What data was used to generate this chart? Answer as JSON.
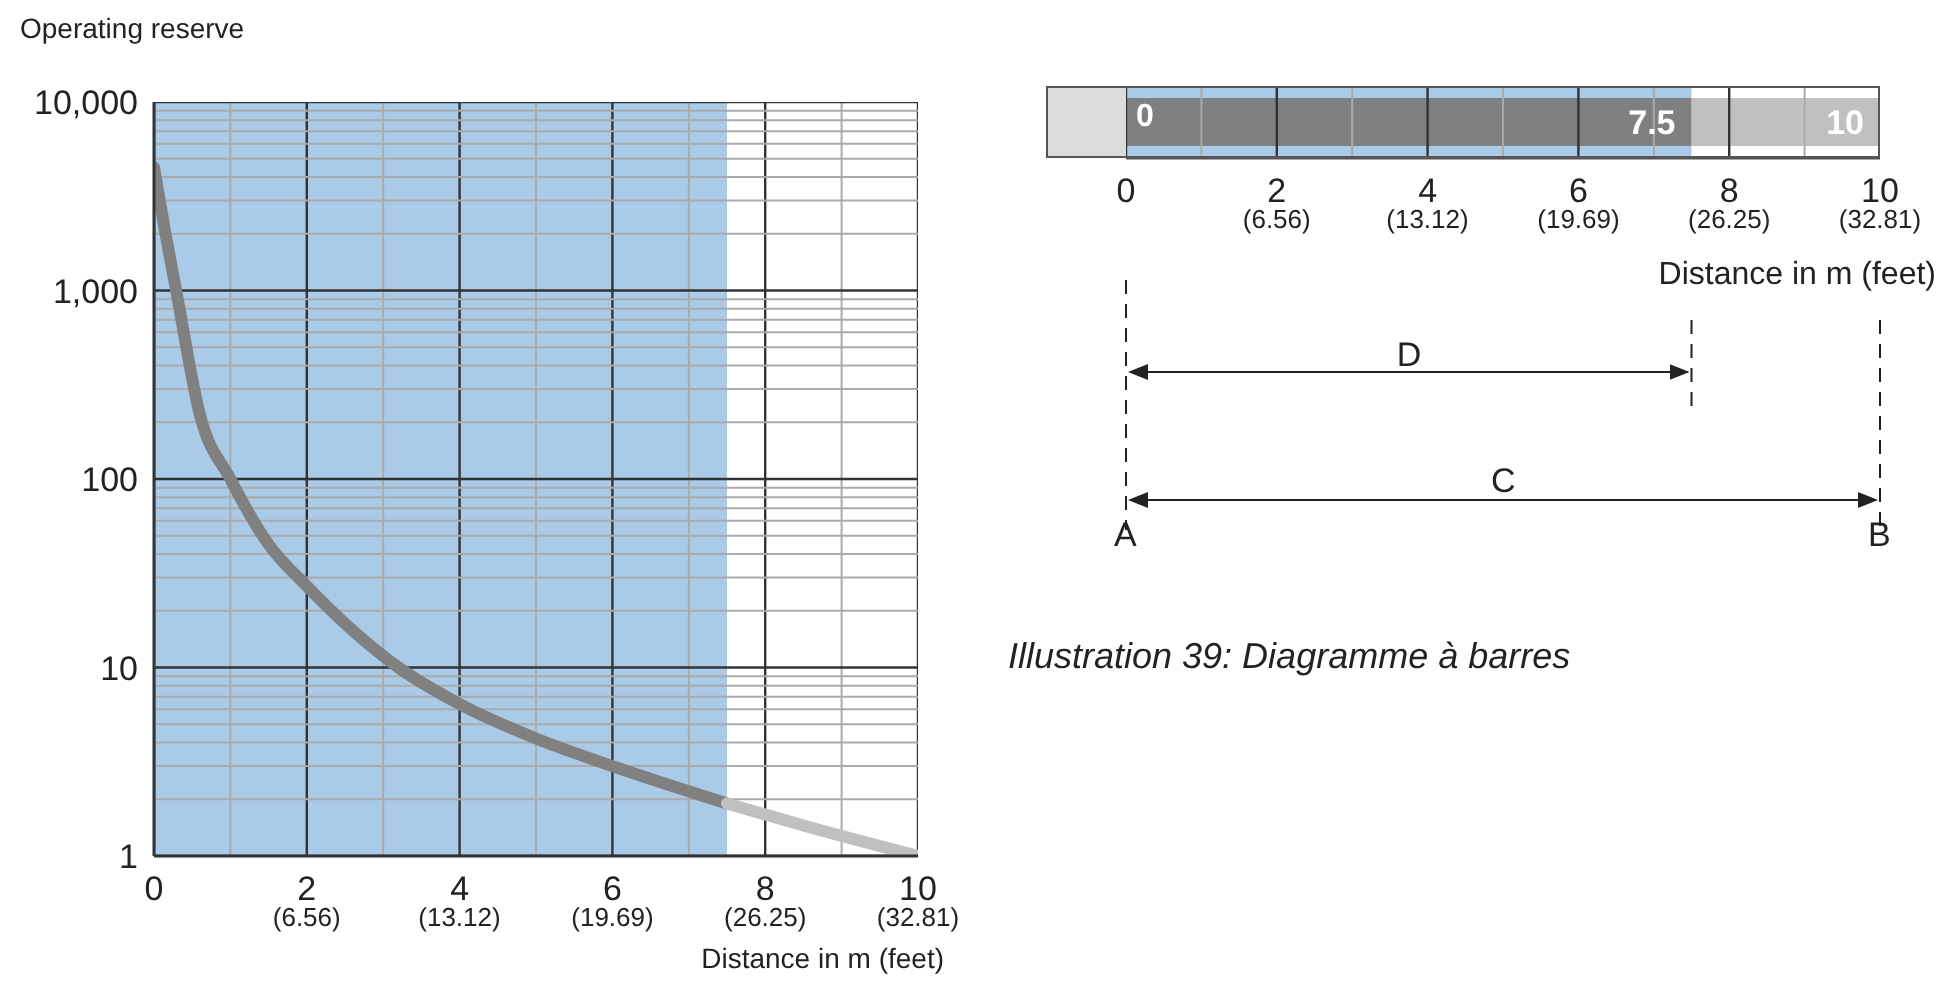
{
  "chart_data": [
    {
      "type": "line",
      "ylabel": "Operating reserve",
      "xlabel": "Distance in m (feet)",
      "log": "y",
      "grid": true,
      "marker": "none",
      "line_style": "solid",
      "xlim": [
        0,
        10
      ],
      "xticks": [
        0,
        {
          "value": 1,
          "label": null
        },
        2,
        {
          "value": 3,
          "label": null
        },
        4,
        {
          "value": 5,
          "label": null
        },
        6,
        {
          "value": 7,
          "label": null
        },
        8,
        {
          "value": 9,
          "label": null
        },
        10
      ],
      "x2lim": [
        0,
        32.81
      ],
      "x2ticks": [
        {
          "value": 6.56,
          "label": "(6.56)"
        },
        {
          "value": 13.12,
          "label": "(13.12)"
        },
        {
          "value": 19.69,
          "label": "(19.69)"
        },
        {
          "value": 26.25,
          "label": "(26.25)"
        },
        {
          "value": 32.81,
          "label": "(32.81)"
        }
      ],
      "ylim": [
        1,
        10000
      ],
      "yticks": [
        1,
        {
          "value": 2,
          "label": null
        },
        {
          "value": 3,
          "label": null
        },
        {
          "value": 4,
          "label": null
        },
        {
          "value": 5,
          "label": null
        },
        {
          "value": 6,
          "label": null
        },
        {
          "value": 7,
          "label": null
        },
        {
          "value": 8,
          "label": null
        },
        {
          "value": 9,
          "label": null
        },
        10,
        {
          "value": 20,
          "label": null
        },
        {
          "value": 30,
          "label": null
        },
        {
          "value": 40,
          "label": null
        },
        {
          "value": 50,
          "label": null
        },
        {
          "value": 60,
          "label": null
        },
        {
          "value": 70,
          "label": null
        },
        {
          "value": 80,
          "label": null
        },
        {
          "value": 90,
          "label": null
        },
        100,
        {
          "value": 200,
          "label": null
        },
        {
          "value": 300,
          "label": null
        },
        {
          "value": 400,
          "label": null
        },
        {
          "value": 500,
          "label": null
        },
        {
          "value": 600,
          "label": null
        },
        {
          "value": 700,
          "label": null
        },
        {
          "value": 800,
          "label": null
        },
        {
          "value": 900,
          "label": null
        },
        {
          "value": 1000,
          "label": "1,000"
        },
        {
          "value": 2000,
          "label": null
        },
        {
          "value": 3000,
          "label": null
        },
        {
          "value": 4000,
          "label": null
        },
        {
          "value": 5000,
          "label": null
        },
        {
          "value": 6000,
          "label": null
        },
        {
          "value": 7000,
          "label": null
        },
        {
          "value": 8000,
          "label": null
        },
        {
          "value": 9000,
          "label": null
        },
        {
          "value": 10000,
          "label": "10,000"
        }
      ],
      "bands": [
        {
          "axis": "x",
          "from": 0,
          "to": 7.5,
          "color": "#a9cbe8"
        }
      ],
      "series": [
        {
          "color": "#808080",
          "x": [
            0,
            0.15,
            0.29,
            0.6,
            1,
            1.5,
            2,
            3.2,
            4,
            5,
            6,
            7.5
          ],
          "values": [
            4500,
            2000,
            1000,
            220,
            100,
            45,
            27,
            10,
            6.4,
            4.2,
            3,
            1.9
          ]
        },
        {
          "color": "#c0c0c0",
          "x": [
            7.5,
            8.5,
            10
          ],
          "values": [
            1.9,
            1.45,
            1
          ]
        }
      ]
    },
    {
      "type": "bar",
      "orientation": "horizontal",
      "stacked": true,
      "categories": [
        null
      ],
      "xlabel": "Distance in m (feet)",
      "tick_labels": "x",
      "grid": "x",
      "xlim": [
        0,
        10
      ],
      "xticks": [
        0,
        {
          "value": 1,
          "label": null
        },
        2,
        {
          "value": 3,
          "label": null
        },
        4,
        {
          "value": 5,
          "label": null
        },
        6,
        {
          "value": 7,
          "label": null
        },
        8,
        {
          "value": 9,
          "label": null
        },
        10
      ],
      "x2lim": [
        0,
        32.81
      ],
      "x2ticks": [
        {
          "value": 6.56,
          "label": "(6.56)"
        },
        {
          "value": 13.12,
          "label": "(13.12)"
        },
        {
          "value": 19.69,
          "label": "(19.69)"
        },
        {
          "value": 26.25,
          "label": "(26.25)"
        },
        {
          "value": 32.81,
          "label": "(32.81)"
        }
      ],
      "bands": [
        {
          "axis": "x",
          "from": 0,
          "to": 7.5,
          "color": "#a9cbe8"
        }
      ],
      "series": [
        {
          "color": "#808080",
          "values": [
            7.5
          ],
          "value_labels": [
            "7.5"
          ]
        },
        {
          "color": "#c0c0c0",
          "values": [
            2.5
          ]
        }
      ],
      "totals": [
        "10"
      ],
      "annotations": [
        {
          "text": "0",
          "x": 0
        },
        "D",
        "C",
        "A",
        "B",
        "Illustration 39: Diagramme à barres"
      ]
    }
  ]
}
